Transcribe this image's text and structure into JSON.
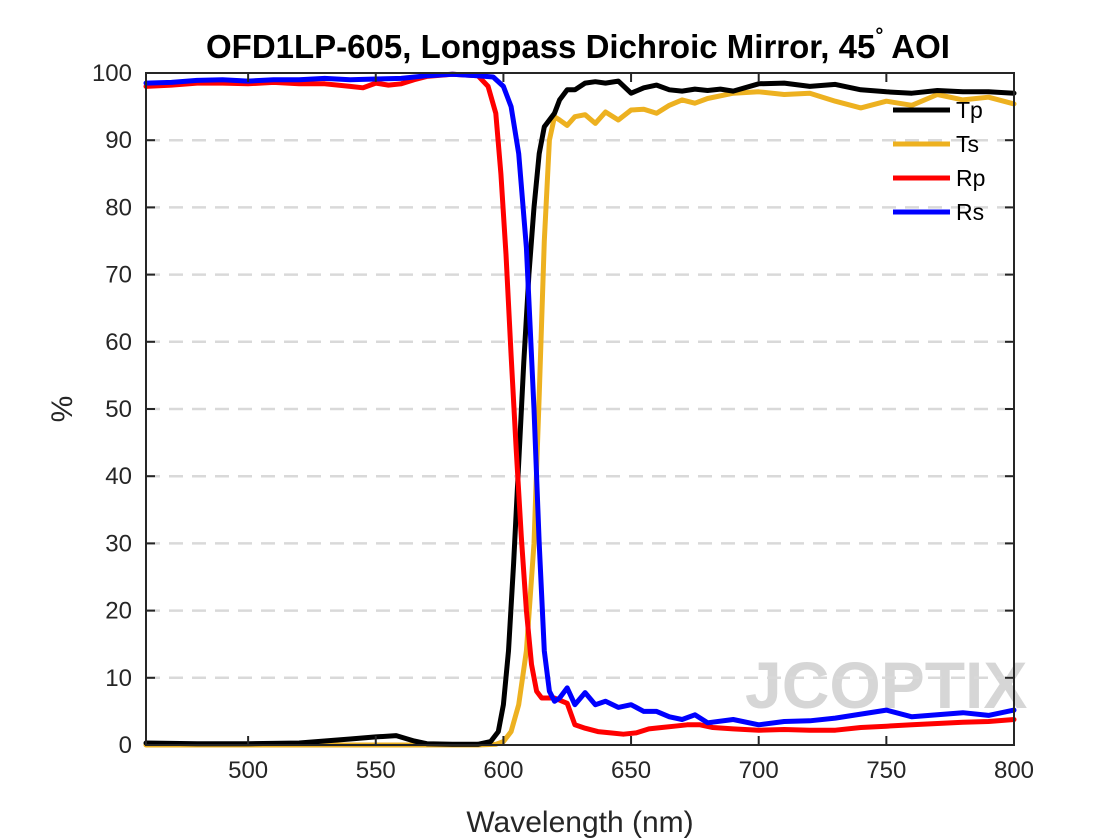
{
  "chart_data": {
    "type": "line",
    "title": "OFD1LP-605, Longpass Dichroic Mirror, 45",
    "title_degree": "°",
    "title_suffix": " AOI",
    "xlabel": "Wavelength (nm)",
    "ylabel": "%",
    "xlim": [
      460,
      800
    ],
    "ylim": [
      0,
      100
    ],
    "xticks": [
      500,
      550,
      600,
      650,
      700,
      750,
      800
    ],
    "yticks": [
      0,
      10,
      20,
      30,
      40,
      50,
      60,
      70,
      80,
      90,
      100
    ],
    "grid": "horizontal-dashed",
    "legend_position": "top-right",
    "watermark": "JCOPTIX",
    "series": [
      {
        "name": "Tp",
        "color": "#000000",
        "x": [
          460,
          480,
          500,
          520,
          530,
          540,
          550,
          558,
          565,
          570,
          580,
          590,
          595,
          598,
          600,
          602,
          604,
          606,
          608,
          610,
          612,
          614,
          616,
          618,
          620,
          622,
          625,
          628,
          632,
          636,
          640,
          645,
          650,
          655,
          660,
          665,
          670,
          675,
          680,
          685,
          690,
          700,
          710,
          720,
          730,
          740,
          750,
          760,
          770,
          780,
          790,
          800
        ],
        "y": [
          0.3,
          0.2,
          0.2,
          0.3,
          0.6,
          0.9,
          1.2,
          1.4,
          0.6,
          0.2,
          0.1,
          0.1,
          0.5,
          2,
          6,
          14,
          27,
          42,
          57,
          70,
          80,
          88,
          92,
          93,
          94,
          96,
          97.5,
          97.5,
          98.5,
          98.7,
          98.5,
          98.8,
          97,
          97.8,
          98.2,
          97.5,
          97.3,
          97.6,
          97.4,
          97.6,
          97.3,
          98.4,
          98.5,
          98,
          98.3,
          97.5,
          97.2,
          97,
          97.4,
          97.2,
          97.2,
          97
        ]
      },
      {
        "name": "Ts",
        "color": "#EDB120",
        "x": [
          460,
          500,
          550,
          590,
          597,
          600,
          603,
          606,
          609,
          612,
          614,
          616,
          618,
          620,
          622,
          625,
          628,
          632,
          636,
          640,
          645,
          650,
          655,
          660,
          665,
          670,
          675,
          680,
          690,
          700,
          710,
          720,
          730,
          740,
          750,
          760,
          770,
          780,
          790,
          800
        ],
        "y": [
          0,
          0,
          0,
          0,
          0.1,
          0.5,
          2,
          6,
          14,
          30,
          52,
          75,
          90,
          93.5,
          93,
          92.2,
          93.5,
          93.8,
          92.5,
          94.2,
          93,
          94.5,
          94.6,
          94,
          95.2,
          96,
          95.5,
          96.2,
          97,
          97.2,
          96.8,
          97,
          95.8,
          94.8,
          95.8,
          95.2,
          96.8,
          96,
          96.4,
          95.4
        ]
      },
      {
        "name": "Rp",
        "color": "#FF0000",
        "x": [
          460,
          470,
          480,
          490,
          500,
          510,
          520,
          530,
          540,
          545,
          550,
          555,
          560,
          565,
          570,
          580,
          590,
          594,
          597,
          599,
          601,
          603,
          605,
          607,
          609,
          611,
          613,
          615,
          617,
          620,
          625,
          628,
          632,
          637,
          642,
          647,
          652,
          657,
          662,
          667,
          672,
          677,
          682,
          690,
          700,
          710,
          720,
          730,
          740,
          750,
          760,
          770,
          780,
          790,
          800
        ],
        "y": [
          98,
          98.2,
          98.5,
          98.5,
          98.4,
          98.6,
          98.4,
          98.4,
          98,
          97.8,
          98.5,
          98.2,
          98.4,
          99,
          99.5,
          99.8,
          99.6,
          98,
          94,
          85,
          73,
          58,
          44,
          31,
          20,
          12,
          8,
          7,
          7,
          7,
          6.2,
          3,
          2.5,
          2,
          1.8,
          1.6,
          1.8,
          2.4,
          2.6,
          2.8,
          3,
          3,
          2.6,
          2.4,
          2.2,
          2.3,
          2.2,
          2.2,
          2.6,
          2.8,
          3,
          3.2,
          3.4,
          3.5,
          3.8
        ]
      },
      {
        "name": "Rs",
        "color": "#0000FF",
        "x": [
          460,
          470,
          480,
          490,
          500,
          510,
          520,
          530,
          540,
          550,
          560,
          570,
          580,
          590,
          596,
          600,
          603,
          606,
          609,
          612,
          614,
          616,
          618,
          620,
          622,
          625,
          628,
          632,
          636,
          640,
          645,
          650,
          655,
          660,
          665,
          670,
          675,
          680,
          690,
          700,
          710,
          720,
          730,
          740,
          750,
          760,
          770,
          780,
          790,
          800
        ],
        "y": [
          98.5,
          98.6,
          98.9,
          99,
          98.8,
          99,
          99,
          99.2,
          99,
          99.1,
          99.2,
          99.6,
          99.8,
          99.6,
          99.4,
          98,
          95,
          88,
          74,
          50,
          30,
          14,
          8,
          6.5,
          7,
          8.5,
          6,
          7.8,
          6,
          6.5,
          5.6,
          6,
          5,
          5,
          4.2,
          3.8,
          4.5,
          3.3,
          3.8,
          3,
          3.5,
          3.6,
          4,
          4.6,
          5.2,
          4.2,
          4.5,
          4.8,
          4.4,
          5.2
        ]
      }
    ]
  }
}
